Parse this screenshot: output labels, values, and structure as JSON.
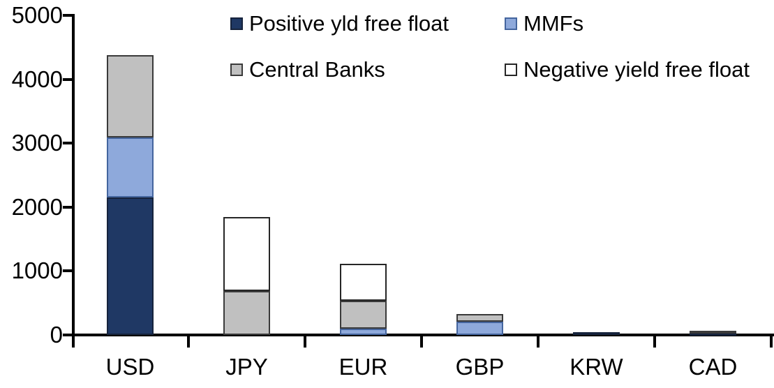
{
  "background": "#FFFFFF",
  "axis_color": "#000000",
  "text_color": "#000000",
  "chart_data": {
    "type": "bar",
    "stacked": true,
    "title": "",
    "xlabel": "",
    "ylabel": "",
    "categories": [
      "USD",
      "JPY",
      "EUR",
      "GBP",
      "KRW",
      "CAD"
    ],
    "series": [
      {
        "name": "Positive yld free float",
        "color": "#1F3864",
        "border": "#16233C",
        "values": [
          2150,
          0,
          0,
          0,
          45,
          30
        ]
      },
      {
        "name": "MMFs",
        "color": "#8EA9DB",
        "border": "#44659E",
        "values": [
          940,
          0,
          100,
          210,
          0,
          0
        ]
      },
      {
        "name": "Central Banks",
        "color": "#C0C0C0",
        "border": "#3A3A3A",
        "values": [
          1290,
          690,
          435,
          120,
          0,
          35
        ]
      },
      {
        "name": "Negative yield free float",
        "color": "#FFFFFF",
        "border": "#262626",
        "values": [
          0,
          1150,
          575,
          0,
          0,
          0
        ]
      }
    ],
    "totals": [
      4380,
      1840,
      1110,
      330,
      45,
      65
    ],
    "ylim": [
      0,
      5000
    ],
    "yticks": [
      0,
      1000,
      2000,
      3000,
      4000,
      5000
    ],
    "grid": false,
    "legend_position": "top",
    "legend_rows": [
      [
        "Positive yld free float",
        "MMFs"
      ],
      [
        "Central Banks",
        "Negative yield free float"
      ]
    ]
  }
}
